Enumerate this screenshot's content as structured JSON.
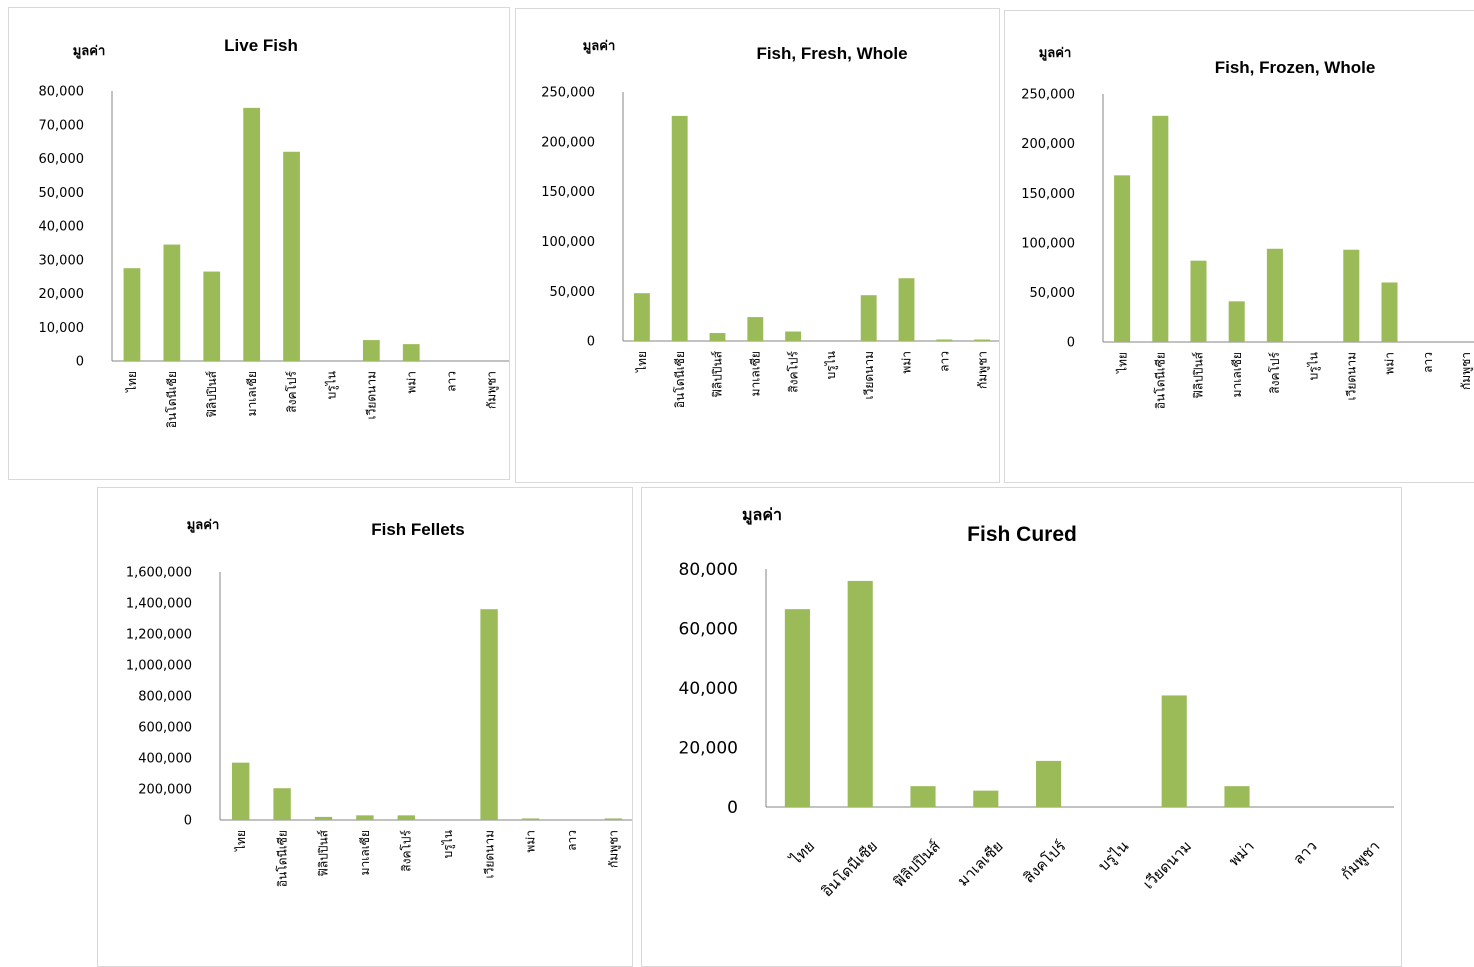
{
  "chart_data": [
    {
      "type": "bar",
      "title": "Live Fish",
      "ylabel": "มูลค่า",
      "categories": [
        "ไทย",
        "อินโดนีเซีย",
        "ฟิลิปปินส์",
        "มาเลเซีย",
        "สิงคโปร์",
        "บรูไน",
        "เวียดนาม",
        "พม่า",
        "ลาว",
        "กัมพูชา"
      ],
      "values": [
        27500,
        34500,
        26500,
        75000,
        62000,
        0,
        6200,
        5000,
        0,
        0
      ],
      "ylim": [
        0,
        80000
      ],
      "yticks": [
        "0",
        "10,000",
        "20,000",
        "30,000",
        "40,000",
        "50,000",
        "60,000",
        "70,000",
        "80,000"
      ],
      "color": "#9bbb59",
      "grid": false,
      "legend": "none"
    },
    {
      "type": "bar",
      "title": "Fish, Fresh, Whole",
      "ylabel": "มูลค่า",
      "categories": [
        "ไทย",
        "อินโดนีเซีย",
        "ฟิลิปปินส์",
        "มาเลเซีย",
        "สิงคโปร์",
        "บรูไน",
        "เวียดนาม",
        "พม่า",
        "ลาว",
        "กัมพูชา"
      ],
      "values": [
        48000,
        226000,
        8000,
        24000,
        9500,
        0,
        46000,
        63000,
        1500,
        1500
      ],
      "ylim": [
        0,
        250000
      ],
      "yticks": [
        "0",
        "50,000",
        "100,000",
        "150,000",
        "200,000",
        "250,000"
      ],
      "color": "#9bbb59",
      "grid": false,
      "legend": "none"
    },
    {
      "type": "bar",
      "title": "Fish, Frozen, Whole",
      "ylabel": "มูลค่า",
      "categories": [
        "ไทย",
        "อินโดนีเซีย",
        "ฟิลิปปินส์",
        "มาเลเซีย",
        "สิงคโปร์",
        "บรูไน",
        "เวียดนาม",
        "พม่า",
        "ลาว",
        "กัมพูชา"
      ],
      "values": [
        168000,
        228000,
        82000,
        41000,
        94000,
        0,
        93000,
        60000,
        0,
        0
      ],
      "ylim": [
        0,
        250000
      ],
      "yticks": [
        "0",
        "50,000",
        "100,000",
        "150,000",
        "200,000",
        "250,000"
      ],
      "color": "#9bbb59",
      "grid": false,
      "legend": "none"
    },
    {
      "type": "bar",
      "title": "Fish Fellets",
      "ylabel": "มูลค่า",
      "categories": [
        "ไทย",
        "อินโดนีเซีย",
        "ฟิลิปปินส์",
        "มาเลเซีย",
        "สิงคโปร์",
        "บรูไน",
        "เวียดนาม",
        "พม่า",
        "ลาว",
        "กัมพูชา"
      ],
      "values": [
        370000,
        205000,
        20000,
        30000,
        30000,
        0,
        1360000,
        10000,
        0,
        10000
      ],
      "ylim": [
        0,
        1600000
      ],
      "yticks": [
        "0",
        "200,000",
        "400,000",
        "600,000",
        "800,000",
        "1,000,000",
        "1,200,000",
        "1,400,000",
        "1,600,000"
      ],
      "color": "#9bbb59",
      "grid": false,
      "legend": "none"
    },
    {
      "type": "bar",
      "title": "Fish Cured",
      "ylabel": "มูลค่า",
      "categories": [
        "ไทย",
        "อินโดนีเซีย",
        "ฟิลิปปินส์",
        "มาเลเซีย",
        "สิงคโปร์",
        "บรูไน",
        "เวียดนาม",
        "พม่า",
        "ลาว",
        "กัมพูชา"
      ],
      "values": [
        66500,
        76000,
        7000,
        5500,
        15500,
        0,
        37500,
        7000,
        0,
        0
      ],
      "ylim": [
        0,
        80000
      ],
      "yticks": [
        "0",
        "20,000",
        "40,000",
        "60,000",
        "80,000"
      ],
      "color": "#9bbb59",
      "grid": false,
      "legend": "none"
    }
  ]
}
